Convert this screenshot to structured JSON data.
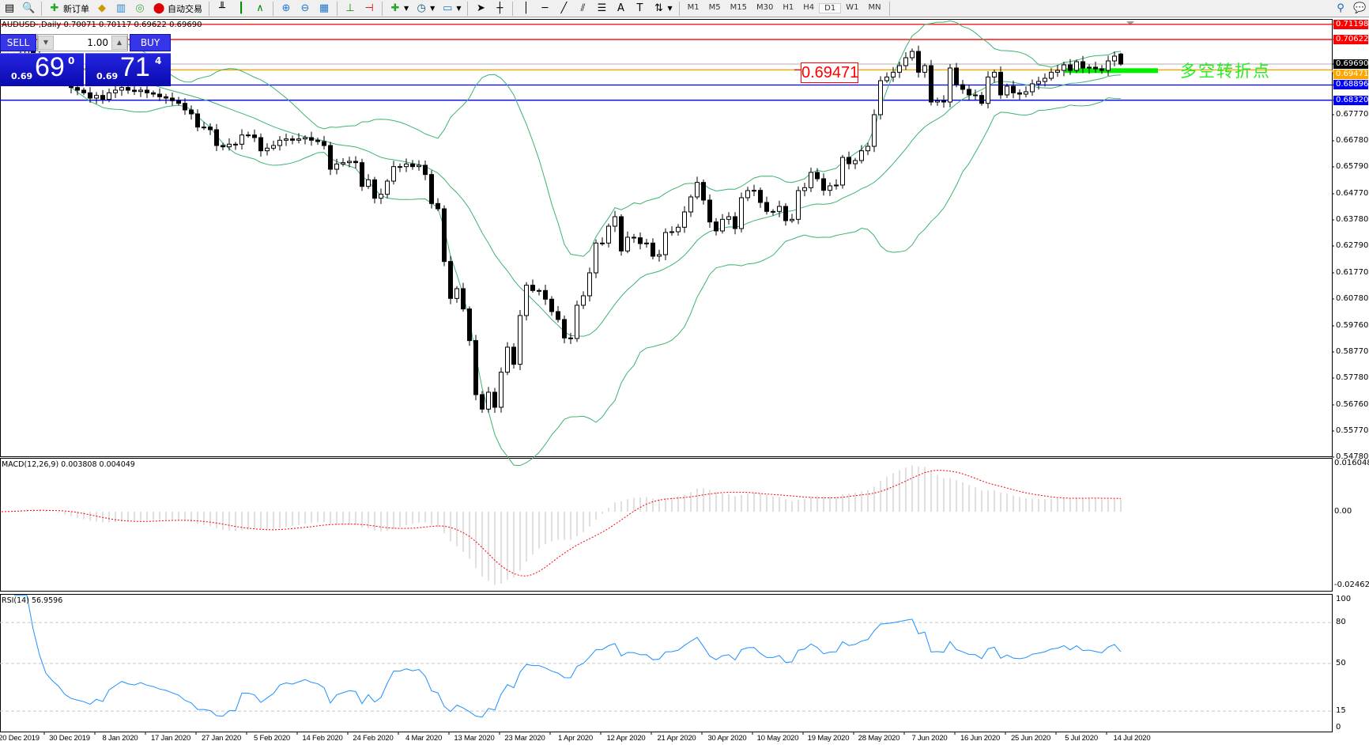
{
  "toolbar": {
    "new_order_label": "新订单",
    "auto_trading_label": "自动交易",
    "timeframes": [
      "M1",
      "M5",
      "M15",
      "M30",
      "H1",
      "H4",
      "D1",
      "W1",
      "MN"
    ],
    "active_timeframe": "D1"
  },
  "chart_header": {
    "symbol_line": "AUDUSD-,Daily  0.70071 0.70117 0.69622 0.69690"
  },
  "trade_panel": {
    "sell_label": "SELL",
    "buy_label": "BUY",
    "lot": "1.00",
    "sell_prefix": "0.69",
    "sell_big": "69",
    "sell_pip": "0",
    "buy_prefix": "0.69",
    "buy_big": "71",
    "buy_pip": "4"
  },
  "annotations": {
    "price_label": "0.69471",
    "chinese_text": "多空转折点"
  },
  "horizontal_lines": [
    {
      "price": 0.71198,
      "label": "0.71198",
      "color": "#ff0000"
    },
    {
      "price": 0.70622,
      "label": "0.70622",
      "color": "#ff0000"
    },
    {
      "price": 0.6969,
      "label": "0.69690",
      "color": "#c0c0c0",
      "label_color": "#000000"
    },
    {
      "price": 0.69471,
      "label": "0.69471",
      "color": "#ffa500"
    },
    {
      "price": 0.68896,
      "label": "0.68896",
      "color": "#0000ff"
    },
    {
      "price": 0.6832,
      "label": "0.68320",
      "color": "#0000ff"
    }
  ],
  "green_zone_color": "#00ee00",
  "chart_data": {
    "type": "candlestick",
    "symbol": "AUDUSD",
    "timeframe": "Daily",
    "last_bar": {
      "open": 0.70071,
      "high": 0.70117,
      "low": 0.69622,
      "close": 0.6969
    },
    "price_ticks": [
      "0.67770",
      "0.66780",
      "0.65790",
      "0.64770",
      "0.63780",
      "0.62790",
      "0.61770",
      "0.60780",
      "0.59760",
      "0.58770",
      "0.57780",
      "0.56760",
      "0.55770",
      "0.54780"
    ],
    "x_tick_labels": [
      "20 Dec 2019",
      "30 Dec 2019",
      "8 Jan 2020",
      "17 Jan 2020",
      "27 Jan 2020",
      "5 Feb 2020",
      "14 Feb 2020",
      "24 Feb 2020",
      "4 Mar 2020",
      "13 Mar 2020",
      "23 Mar 2020",
      "1 Apr 2020",
      "12 Apr 2020",
      "21 Apr 2020",
      "30 Apr 2020",
      "10 May 2020",
      "19 May 2020",
      "28 May 2020",
      "7 Jun 2020",
      "16 Jun 2020",
      "25 Jun 2020",
      "5 Jul 2020",
      "14 Jul 2020"
    ],
    "closes": [
      0.6975,
      0.699,
      0.7,
      0.701,
      0.702,
      0.7005,
      0.6985,
      0.696,
      0.6945,
      0.693,
      0.69,
      0.688,
      0.687,
      0.686,
      0.684,
      0.685,
      0.6835,
      0.686,
      0.687,
      0.688,
      0.687,
      0.6865,
      0.687,
      0.686,
      0.6855,
      0.6845,
      0.684,
      0.683,
      0.682,
      0.6795,
      0.678,
      0.673,
      0.673,
      0.672,
      0.666,
      0.6655,
      0.6665,
      0.6665,
      0.67,
      0.67,
      0.669,
      0.664,
      0.665,
      0.666,
      0.668,
      0.6685,
      0.668,
      0.6685,
      0.669,
      0.668,
      0.6675,
      0.666,
      0.657,
      0.659,
      0.6595,
      0.66,
      0.6595,
      0.6505,
      0.653,
      0.646,
      0.6475,
      0.6525,
      0.658,
      0.658,
      0.659,
      0.658,
      0.6585,
      0.655,
      0.644,
      0.642,
      0.622,
      0.608,
      0.6117,
      0.604,
      0.592,
      0.5715,
      0.566,
      0.5724,
      0.5667,
      0.58,
      0.5895,
      0.583,
      0.6015,
      0.613,
      0.611,
      0.611,
      0.6077,
      0.603,
      0.6,
      0.593,
      0.5928,
      0.6054,
      0.609,
      0.6177,
      0.629,
      0.629,
      0.6354,
      0.639,
      0.626,
      0.6312,
      0.631,
      0.6288,
      0.629,
      0.624,
      0.6246,
      0.633,
      0.6333,
      0.635,
      0.6408,
      0.6465,
      0.652,
      0.6453,
      0.637,
      0.6336,
      0.638,
      0.639,
      0.6345,
      0.6462,
      0.6489,
      0.649,
      0.6444,
      0.641,
      0.641,
      0.6429,
      0.6375,
      0.638,
      0.6489,
      0.65,
      0.6558,
      0.6534,
      0.649,
      0.6507,
      0.651,
      0.6615,
      0.6591,
      0.6603,
      0.664,
      0.6657,
      0.6777,
      0.6906,
      0.692,
      0.6938,
      0.6963,
      0.6993,
      0.7017,
      0.6938,
      0.6963,
      0.6825,
      0.683,
      0.6825,
      0.6954,
      0.6891,
      0.6873,
      0.6852,
      0.685,
      0.682,
      0.692,
      0.6938,
      0.6852,
      0.6885,
      0.686,
      0.6855,
      0.6864,
      0.6894,
      0.6903,
      0.6915,
      0.6938,
      0.6945,
      0.6966,
      0.6945,
      0.6978,
      0.6954,
      0.6957,
      0.6951,
      0.6945,
      0.6981,
      0.6999,
      0.6969
    ],
    "bollinger": {
      "color": "#3cb371"
    },
    "macd": {
      "label": "MACD(12,26,9) 0.003808 0.004049",
      "ticks": [
        "0.016048",
        "0.00",
        "-0.024625"
      ],
      "range": [
        -0.024625,
        0.016048
      ],
      "histogram_color": "#c0c0c0",
      "signal_color": "#ff0000"
    },
    "rsi": {
      "label": "RSI(14) 56.9596",
      "ticks": [
        "100",
        "80",
        "50",
        "15",
        "0"
      ],
      "levels": [
        80,
        50,
        15
      ],
      "color": "#1e90ff"
    }
  }
}
